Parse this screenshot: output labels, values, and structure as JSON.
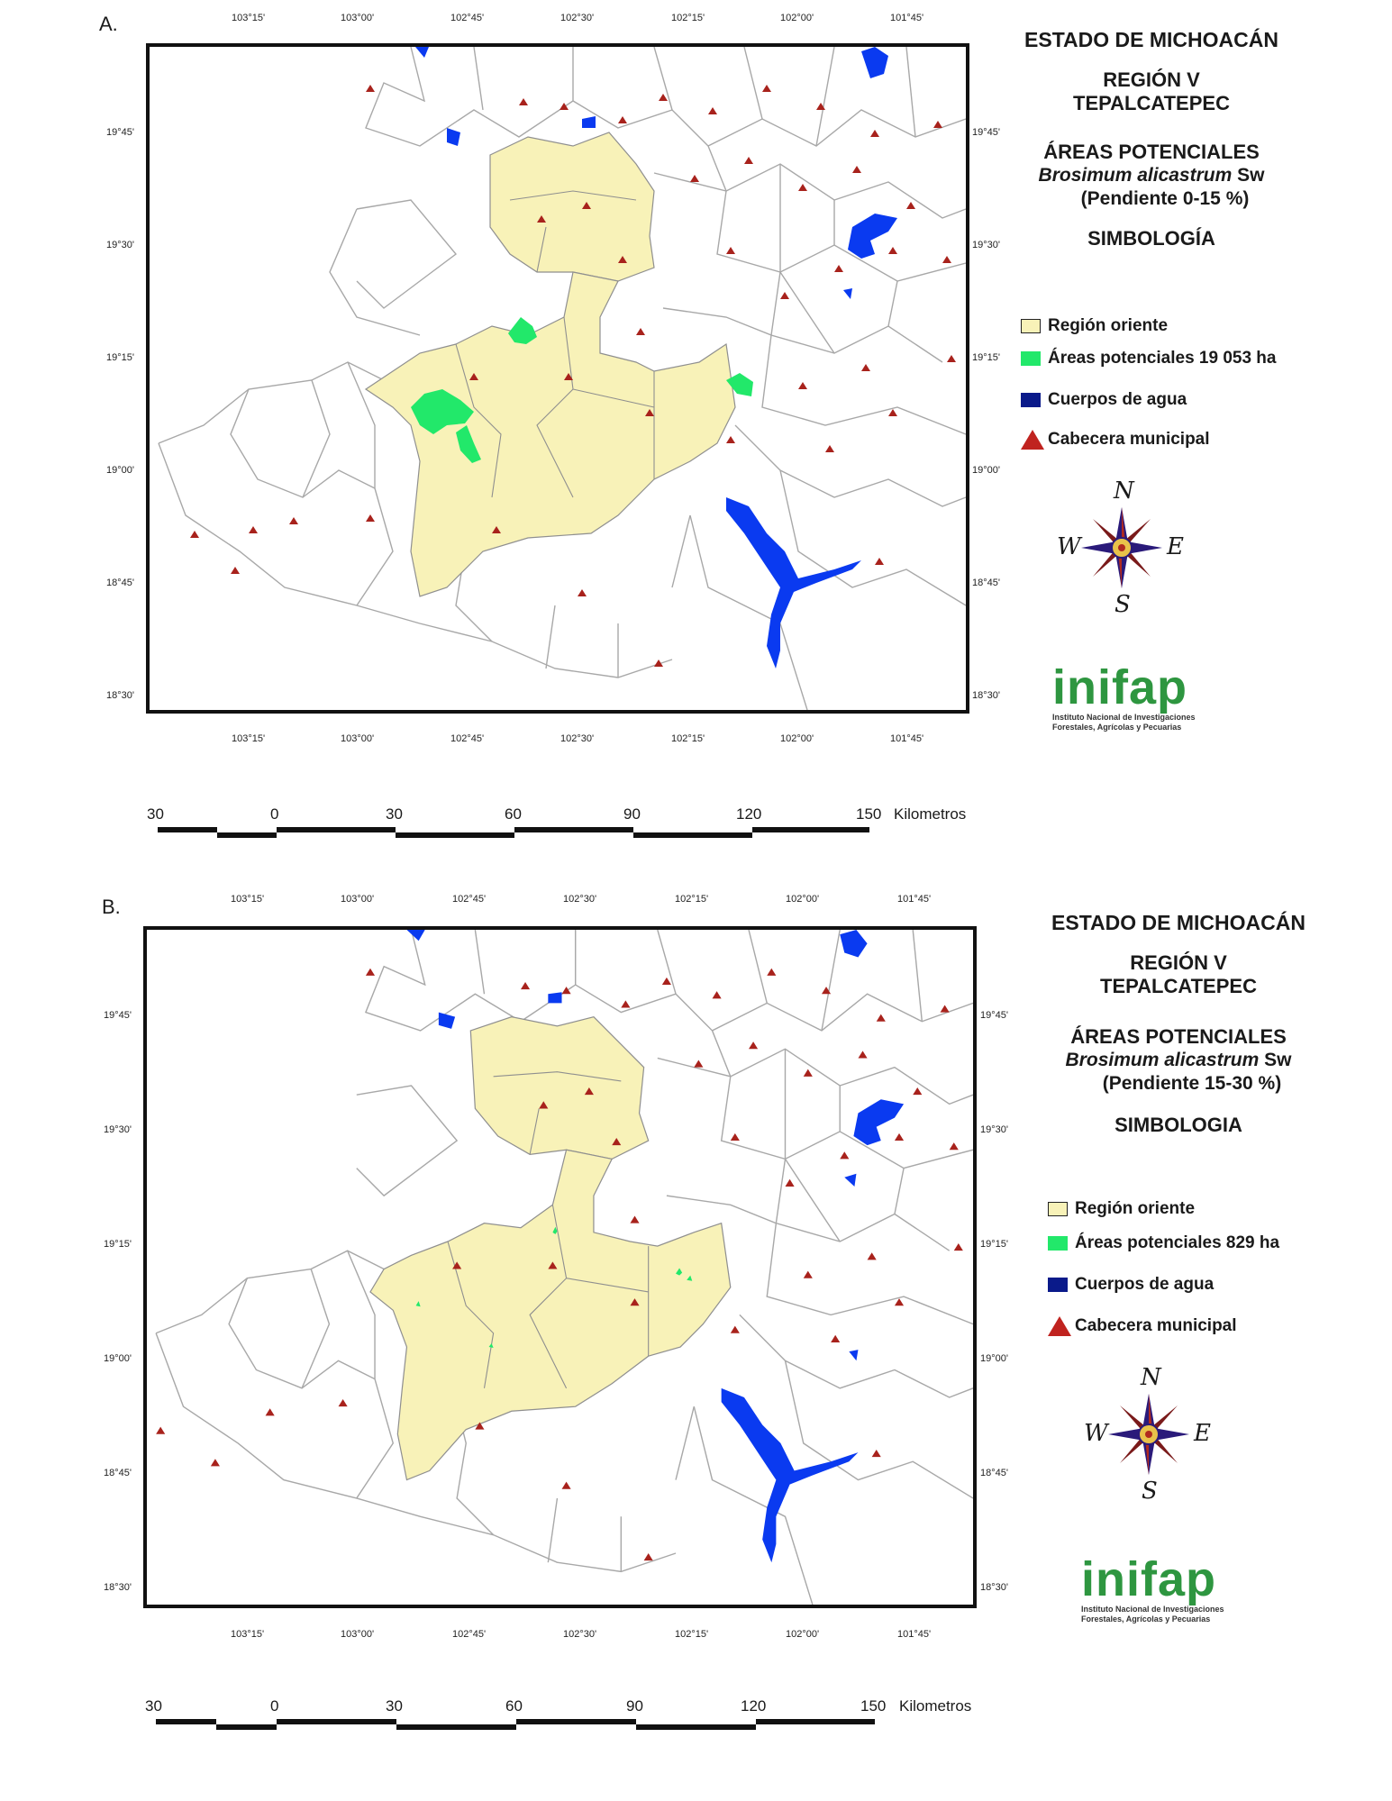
{
  "panels": [
    {
      "id": "A",
      "label": "A.",
      "legend": {
        "state": "ESTADO DE MICHOACÁN",
        "region_line1": "REGIÓN V",
        "region_line2": "TEPALCATEPEC",
        "areas_title": "ÁREAS POTENCIALES",
        "species": "Brosimum alicastrum",
        "species_author": "Sw",
        "slope": "(Pendiente 0-15 %)",
        "symbology_title": "SIMBOLOGÍA",
        "items": [
          {
            "label": "Región oriente",
            "kind": "fill",
            "color": "#f8f2b8"
          },
          {
            "label": "Áreas potenciales 19 053 ha",
            "kind": "fill",
            "color": "#22e86a"
          },
          {
            "label": "Cuerpos de agua",
            "kind": "fill",
            "color": "#0a1a8a"
          },
          {
            "label": "Cabecera municipal",
            "kind": "triangle",
            "color": "#c0231f"
          }
        ]
      },
      "potential_area_ha": 19053
    },
    {
      "id": "B",
      "label": "B.",
      "legend": {
        "state": "ESTADO DE MICHOACÁN",
        "region_line1": "REGIÓN V",
        "region_line2": "TEPALCATEPEC",
        "areas_title": "ÁREAS POTENCIALES",
        "species": "Brosimum alicastrum",
        "species_author": "Sw",
        "slope": "(Pendiente 15-30 %)",
        "symbology_title": "SIMBOLOGIA",
        "items": [
          {
            "label": "Región oriente",
            "kind": "fill",
            "color": "#f8f2b8"
          },
          {
            "label": "Áreas potenciales 829 ha",
            "kind": "fill",
            "color": "#22e86a"
          },
          {
            "label": "Cuerpos de agua",
            "kind": "fill",
            "color": "#0a1a8a"
          },
          {
            "label": "Cabecera municipal",
            "kind": "triangle",
            "color": "#c0231f"
          }
        ]
      },
      "potential_area_ha": 829
    }
  ],
  "longitude_labels": [
    "103°15'",
    "103°00'",
    "102°45'",
    "102°30'",
    "102°15'",
    "102°00'",
    "101°45'"
  ],
  "latitude_labels": [
    "19°45'",
    "19°30'",
    "19°15'",
    "19°00'",
    "18°45'",
    "18°30'"
  ],
  "compass": {
    "n": "N",
    "s": "S",
    "e": "E",
    "w": "W"
  },
  "logo": {
    "word": "inifap",
    "line1": "Instituto Nacional de Investigaciones",
    "line2": "Forestales, Agrícolas y Pecuarias"
  },
  "scale": {
    "ticks": [
      "30",
      "0",
      "30",
      "60",
      "90",
      "120",
      "150"
    ],
    "unit": "Kilometros"
  },
  "colors": {
    "region": "#f8f2b8",
    "potential": "#22e86a",
    "water": "#0a3af0",
    "town": "#a8221c",
    "border": "#a8a8a8"
  }
}
